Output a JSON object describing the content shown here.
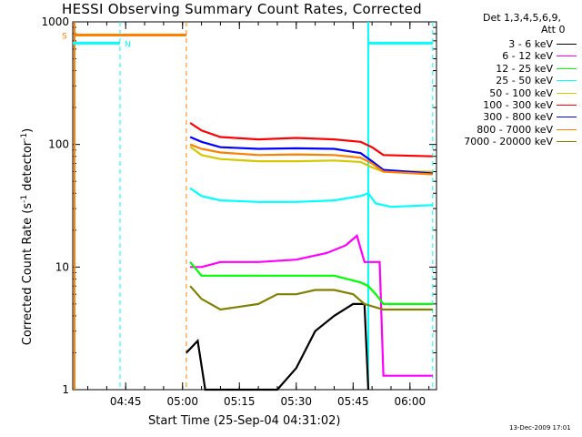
{
  "header": {
    "title": "HESSI Observing Summary Count Rates, Corrected",
    "detectors_line1": "Det 1,3,4,5,6,9,",
    "detectors_line2": "Att 0",
    "timestamp": "13-Dec-2009 17:01"
  },
  "chart_data": {
    "type": "line",
    "title": "HESSI Observing Summary Count Rates, Corrected",
    "xlabel": "Start Time (25-Sep-04 04:31:02)",
    "ylabel_text": "Corrected Count Rate (s",
    "ylabel_sup1": "-1",
    "ylabel_mid": " detector",
    "ylabel_sup2": "-1",
    "ylabel_end": ")",
    "y_scale": "log",
    "ylim": [
      1,
      1000
    ],
    "xlim": [
      "04:31:02",
      "06:07:00"
    ],
    "x_ticks": [
      "04:45",
      "05:00",
      "05:15",
      "05:30",
      "05:45",
      "06:00"
    ],
    "y_ticks": [
      "1",
      "10",
      "100",
      "1000"
    ],
    "grid": false,
    "legend_position": "right",
    "markers": [
      {
        "label": "S",
        "color": "#ff8000"
      },
      {
        "label": "N",
        "color": "#00ffff"
      }
    ],
    "series": [
      {
        "name": "3 - 6 keV",
        "color": "#000000",
        "points": [
          [
            "05:01",
            2
          ],
          [
            "05:04",
            2.5
          ],
          [
            "05:06",
            1
          ],
          [
            "05:20",
            1
          ],
          [
            "05:25",
            1
          ],
          [
            "05:30",
            1.5
          ],
          [
            "05:35",
            3
          ],
          [
            "05:40",
            4
          ],
          [
            "05:45",
            5
          ],
          [
            "05:48",
            5
          ],
          [
            "05:49",
            1
          ]
        ]
      },
      {
        "name": "6 - 12 keV",
        "color": "#ff00ff",
        "points": [
          [
            "05:02",
            10
          ],
          [
            "05:05",
            10
          ],
          [
            "05:10",
            11
          ],
          [
            "05:20",
            11
          ],
          [
            "05:30",
            11.5
          ],
          [
            "05:38",
            13
          ],
          [
            "05:43",
            15
          ],
          [
            "05:46",
            18
          ],
          [
            "05:48",
            11
          ],
          [
            "05:52",
            11
          ],
          [
            "05:53",
            1.3
          ],
          [
            "06:06",
            1.3
          ]
        ]
      },
      {
        "name": "12 - 25 keV",
        "color": "#00ff00",
        "points": [
          [
            "05:02",
            11
          ],
          [
            "05:05",
            8.5
          ],
          [
            "05:10",
            8.5
          ],
          [
            "05:20",
            8.5
          ],
          [
            "05:30",
            8.5
          ],
          [
            "05:40",
            8.5
          ],
          [
            "05:47",
            7.5
          ],
          [
            "05:49",
            7
          ],
          [
            "05:51",
            6
          ],
          [
            "05:53",
            5
          ],
          [
            "06:06",
            5
          ]
        ]
      },
      {
        "name": "25 - 50 keV",
        "color": "#00ffff",
        "points": [
          [
            "05:02",
            44
          ],
          [
            "05:05",
            38
          ],
          [
            "05:10",
            35
          ],
          [
            "05:20",
            34
          ],
          [
            "05:30",
            34
          ],
          [
            "05:40",
            35
          ],
          [
            "05:47",
            38
          ],
          [
            "05:49",
            40
          ],
          [
            "05:51",
            33
          ],
          [
            "05:55",
            31
          ],
          [
            "06:06",
            32
          ]
        ]
      },
      {
        "name": "50 - 100 keV",
        "color": "#d4c800",
        "points": [
          [
            "05:02",
            96
          ],
          [
            "05:05",
            82
          ],
          [
            "05:10",
            76
          ],
          [
            "05:20",
            73
          ],
          [
            "05:30",
            73
          ],
          [
            "05:40",
            74
          ],
          [
            "05:47",
            72
          ],
          [
            "05:50",
            65
          ],
          [
            "05:53",
            60
          ],
          [
            "06:06",
            60
          ]
        ]
      },
      {
        "name": "100 - 300 keV",
        "color": "#ff0000",
        "points": [
          [
            "05:02",
            150
          ],
          [
            "05:05",
            130
          ],
          [
            "05:10",
            115
          ],
          [
            "05:20",
            110
          ],
          [
            "05:30",
            113
          ],
          [
            "05:40",
            110
          ],
          [
            "05:47",
            105
          ],
          [
            "05:50",
            95
          ],
          [
            "05:53",
            82
          ],
          [
            "06:06",
            80
          ]
        ]
      },
      {
        "name": "300 - 800 keV",
        "color": "#0000ff",
        "points": [
          [
            "05:02",
            115
          ],
          [
            "05:05",
            105
          ],
          [
            "05:10",
            95
          ],
          [
            "05:20",
            92
          ],
          [
            "05:30",
            93
          ],
          [
            "05:40",
            92
          ],
          [
            "05:47",
            85
          ],
          [
            "05:50",
            73
          ],
          [
            "05:53",
            62
          ],
          [
            "06:06",
            58
          ]
        ]
      },
      {
        "name": "800 - 7000 keV",
        "color": "#ff8000",
        "points": [
          [
            "05:02",
            100
          ],
          [
            "05:05",
            92
          ],
          [
            "05:10",
            86
          ],
          [
            "05:20",
            82
          ],
          [
            "05:30",
            83
          ],
          [
            "05:40",
            82
          ],
          [
            "05:47",
            78
          ],
          [
            "05:50",
            70
          ],
          [
            "05:53",
            60
          ],
          [
            "06:06",
            57
          ]
        ]
      },
      {
        "name": "7000 - 20000 keV",
        "color": "#808000",
        "points": [
          [
            "05:02",
            7
          ],
          [
            "05:05",
            5.5
          ],
          [
            "05:10",
            4.5
          ],
          [
            "05:20",
            5
          ],
          [
            "05:25",
            6
          ],
          [
            "05:30",
            6
          ],
          [
            "05:35",
            6.5
          ],
          [
            "05:40",
            6.5
          ],
          [
            "05:45",
            6
          ],
          [
            "05:48",
            5
          ],
          [
            "05:53",
            4.5
          ],
          [
            "06:06",
            4.5
          ]
        ]
      }
    ]
  }
}
